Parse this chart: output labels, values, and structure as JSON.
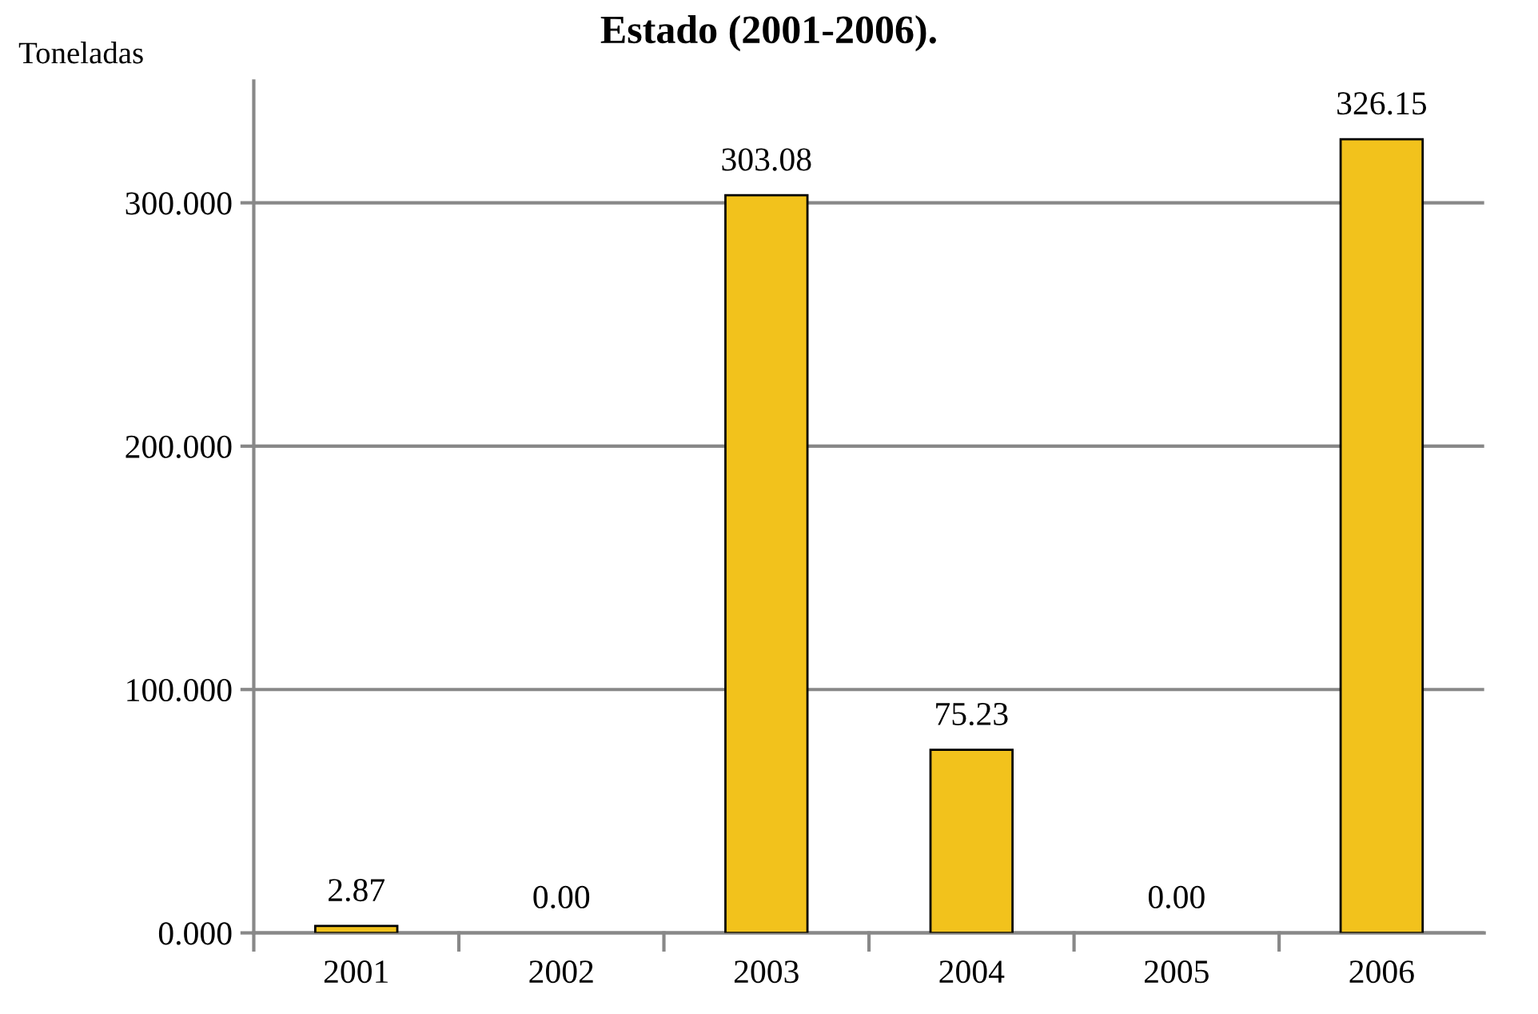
{
  "chart_data": {
    "type": "bar",
    "title": "Estado (2001-2006).",
    "ylabel": "Toneladas",
    "categories": [
      "2001",
      "2002",
      "2003",
      "2004",
      "2005",
      "2006"
    ],
    "values": [
      2.87,
      0.0,
      303.08,
      75.23,
      0.0,
      326.15
    ],
    "value_labels": [
      "2.87",
      "0.00",
      "303.08",
      "75.23",
      "0.00",
      "326.15"
    ],
    "color": "#f2c21c",
    "ylim": [
      0,
      350
    ],
    "yticks": [
      {
        "value": 0,
        "label": "0.000"
      },
      {
        "value": 100,
        "label": "100.000"
      },
      {
        "value": 200,
        "label": "200.000"
      },
      {
        "value": 300,
        "label": "300.000"
      }
    ],
    "grid": "y"
  }
}
